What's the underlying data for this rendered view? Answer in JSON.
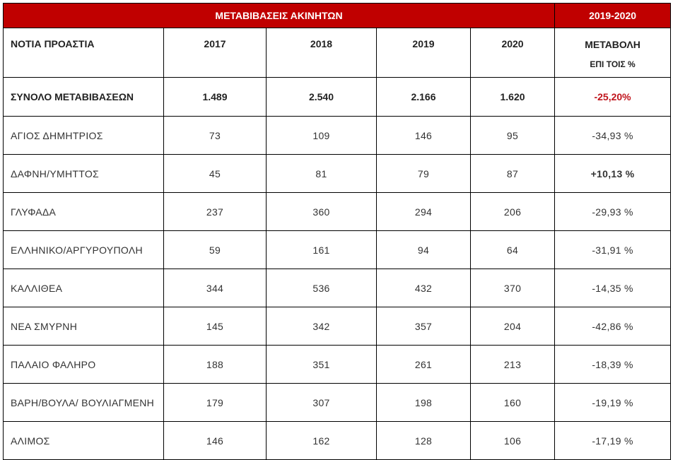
{
  "header": {
    "title": "ΜΕΤΑΒΙΒΑΣΕΙΣ ΑΚΙΝΗΤΩΝ",
    "period": "2019-2020"
  },
  "columns": {
    "area": "ΝΟΤΙΑ ΠΡΟΑΣΤΙΑ",
    "y2017": "2017",
    "y2018": "2018",
    "y2019": "2019",
    "y2020": "2020",
    "change": "ΜΕΤΑΒΟΛΗ",
    "change_unit": "ΕΠΙ ΤΟΙΣ %"
  },
  "total": {
    "label": "ΣΥΝΟΛΟ ΜΕΤΑΒΙΒΑΣΕΩΝ",
    "v2017": "1.489",
    "v2018": "2.540",
    "v2019": "2.166",
    "v2020": "1.620",
    "change": "-25,20%"
  },
  "rows": [
    {
      "name": "ΑΓΙΟΣ ΔΗΜΗΤΡΙΟΣ",
      "v2017": "73",
      "v2018": "109",
      "v2019": "146",
      "v2020": "95",
      "change": "-34,93 %"
    },
    {
      "name": "ΔΑΦΝΗ/ΥΜΗΤΤΟΣ",
      "v2017": "45",
      "v2018": "81",
      "v2019": "79",
      "v2020": "87",
      "change": "+10,13 %"
    },
    {
      "name": "ΓΛΥΦΑΔΑ",
      "v2017": "237",
      "v2018": "360",
      "v2019": "294",
      "v2020": "206",
      "change": "-29,93 %"
    },
    {
      "name": "ΕΛΛΗΝΙΚΟ/ΑΡΓΥΡΟΥΠΟΛΗ",
      "v2017": "59",
      "v2018": "161",
      "v2019": "94",
      "v2020": "64",
      "change": "-31,91 %"
    },
    {
      "name": "ΚΑΛΛΙΘΕΑ",
      "v2017": "344",
      "v2018": "536",
      "v2019": "432",
      "v2020": "370",
      "change": "-14,35 %"
    },
    {
      "name": "ΝΕΑ ΣΜΥΡΝΗ",
      "v2017": "145",
      "v2018": "342",
      "v2019": "357",
      "v2020": "204",
      "change": "-42,86 %"
    },
    {
      "name": "ΠΑΛΑΙΟ ΦΑΛΗΡΟ",
      "v2017": "188",
      "v2018": "351",
      "v2019": "261",
      "v2020": "213",
      "change": "-18,39 %"
    },
    {
      "name": "ΒΑΡΗ/ΒΟΥΛΑ/ ΒΟΥΛΙΑΓΜΕΝΗ",
      "v2017": "179",
      "v2018": "307",
      "v2019": "198",
      "v2020": "160",
      "change": "-19,19 %"
    },
    {
      "name": "ΑΛΙΜΟΣ",
      "v2017": "146",
      "v2018": "162",
      "v2019": "128",
      "v2020": "106",
      "change": "-17,19 %"
    }
  ],
  "colors": {
    "header_bg": "#c00000",
    "negative": "#d0202a",
    "positive": "#1f6cbf"
  }
}
